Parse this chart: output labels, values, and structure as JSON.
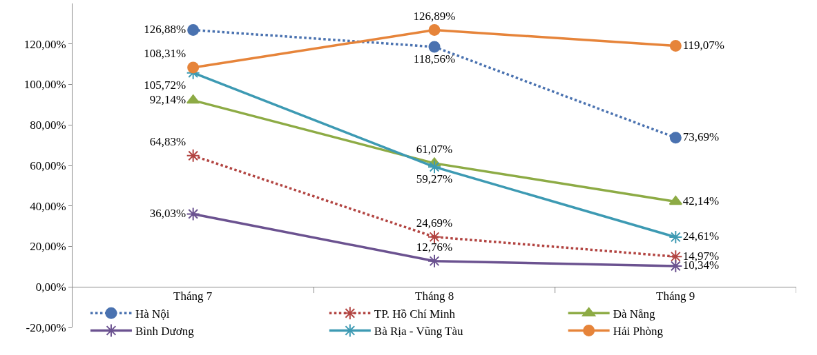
{
  "chart_data": {
    "type": "line",
    "categories": [
      "Tháng 7",
      "Tháng 8",
      "Tháng 9"
    ],
    "series": [
      {
        "name": "Hà Nội",
        "color": "#4a72b0",
        "values": [
          126.88,
          118.56,
          73.69
        ],
        "value_labels": [
          "126,88%",
          "118,56%",
          "73,69%"
        ],
        "marker": "circle",
        "line_style": "dotted"
      },
      {
        "name": "TP. Hồ Chí Minh",
        "color": "#b24441",
        "values": [
          64.83,
          24.69,
          14.97
        ],
        "value_labels": [
          "64,83%",
          "24,69%",
          "14,97%"
        ],
        "marker": "cross",
        "line_style": "dotted"
      },
      {
        "name": "Đà Nẵng",
        "color": "#8dab45",
        "values": [
          92.14,
          61.07,
          42.14
        ],
        "value_labels": [
          "92,14%",
          "61,07%",
          "42,14%"
        ],
        "marker": "triangle",
        "line_style": "solid"
      },
      {
        "name": "Bình Dương",
        "color": "#6b5290",
        "values": [
          36.03,
          12.76,
          10.34
        ],
        "value_labels": [
          "36,03%",
          "12,76%",
          "10,34%"
        ],
        "marker": "cross",
        "line_style": "solid"
      },
      {
        "name": "Bà Rịa - Vũng Tàu",
        "color": "#3d9ab3",
        "values": [
          105.72,
          59.27,
          24.61
        ],
        "value_labels": [
          "105,72%",
          "59,27%",
          "24,61%"
        ],
        "marker": "cross",
        "line_style": "solid"
      },
      {
        "name": "Hải Phòng",
        "color": "#e6843a",
        "values": [
          108.31,
          126.89,
          119.07
        ],
        "value_labels": [
          "108,31%",
          "126,89%",
          "119,07%"
        ],
        "marker": "circle",
        "line_style": "solid"
      }
    ],
    "ylim": [
      -20,
      140
    ],
    "yticks": [
      {
        "value": -20,
        "label": "-20,00%"
      },
      {
        "value": 0,
        "label": "0,00%"
      },
      {
        "value": 20,
        "label": "20,00%"
      },
      {
        "value": 40,
        "label": "40,00%"
      },
      {
        "value": 60,
        "label": "60,00%"
      },
      {
        "value": 80,
        "label": "80,00%"
      },
      {
        "value": 100,
        "label": "100,00%"
      },
      {
        "value": 120,
        "label": "120,00%"
      }
    ],
    "grid": false,
    "legend": "bottom"
  }
}
